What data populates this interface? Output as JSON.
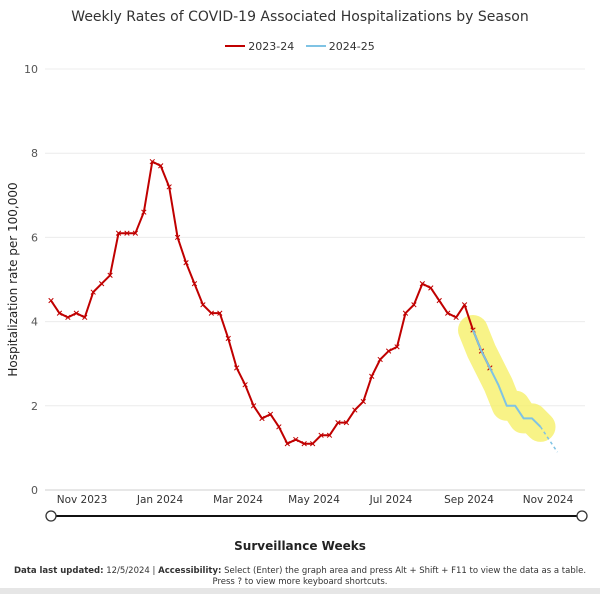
{
  "chart_data": {
    "type": "line",
    "title": "Weekly Rates of COVID-19 Associated Hospitalizations by Season",
    "ylabel": "Hospitalization rate per 100,000",
    "xlabel": "Surveillance Weeks",
    "ylim": [
      0,
      10
    ],
    "yticks": [
      0,
      2,
      4,
      6,
      8,
      10
    ],
    "x_tick_labels": [
      "Nov 2023",
      "Jan 2024",
      "Mar 2024",
      "May 2024",
      "Jul 2024",
      "Sep 2024",
      "Nov 2024"
    ],
    "legend_position": "top-center",
    "grid": true,
    "series": [
      {
        "name": "2023-24",
        "color": "#c00000",
        "values": [
          4.5,
          4.2,
          4.1,
          4.2,
          4.1,
          4.7,
          4.9,
          5.1,
          6.1,
          6.1,
          6.1,
          6.6,
          7.8,
          7.7,
          7.2,
          6.0,
          5.4,
          4.9,
          4.4,
          4.2,
          4.2,
          3.6,
          2.9,
          2.5,
          2.0,
          1.7,
          1.8,
          1.5,
          1.1,
          1.2,
          1.1,
          1.1,
          1.3,
          1.3,
          1.6,
          1.6,
          1.9,
          2.1,
          2.7,
          3.1,
          3.3,
          3.4,
          4.2,
          4.4,
          4.9,
          4.8,
          4.5,
          4.2,
          4.1,
          4.4,
          3.8,
          3.3,
          2.9
        ]
      },
      {
        "name": "2024-25",
        "color": "#7fc3e4",
        "start_week_index": 50,
        "values": [
          3.8,
          3.3,
          2.9,
          2.5,
          2.0,
          2.0,
          1.7,
          1.7,
          1.5
        ],
        "projected_values": [
          1.5,
          1.2,
          0.9
        ]
      }
    ],
    "annotations": [
      "yellow highlight over recent 2024-25 weeks"
    ]
  },
  "footer": {
    "updated_label": "Data last updated:",
    "updated_value": "12/5/2024",
    "separator": "|",
    "accessibility_label": "Accessibility:",
    "accessibility_text": "Select (Enter) the graph area and press Alt + Shift + F11 to view the data as a table.",
    "shortcuts_text": "Press ? to view more keyboard shortcuts."
  }
}
